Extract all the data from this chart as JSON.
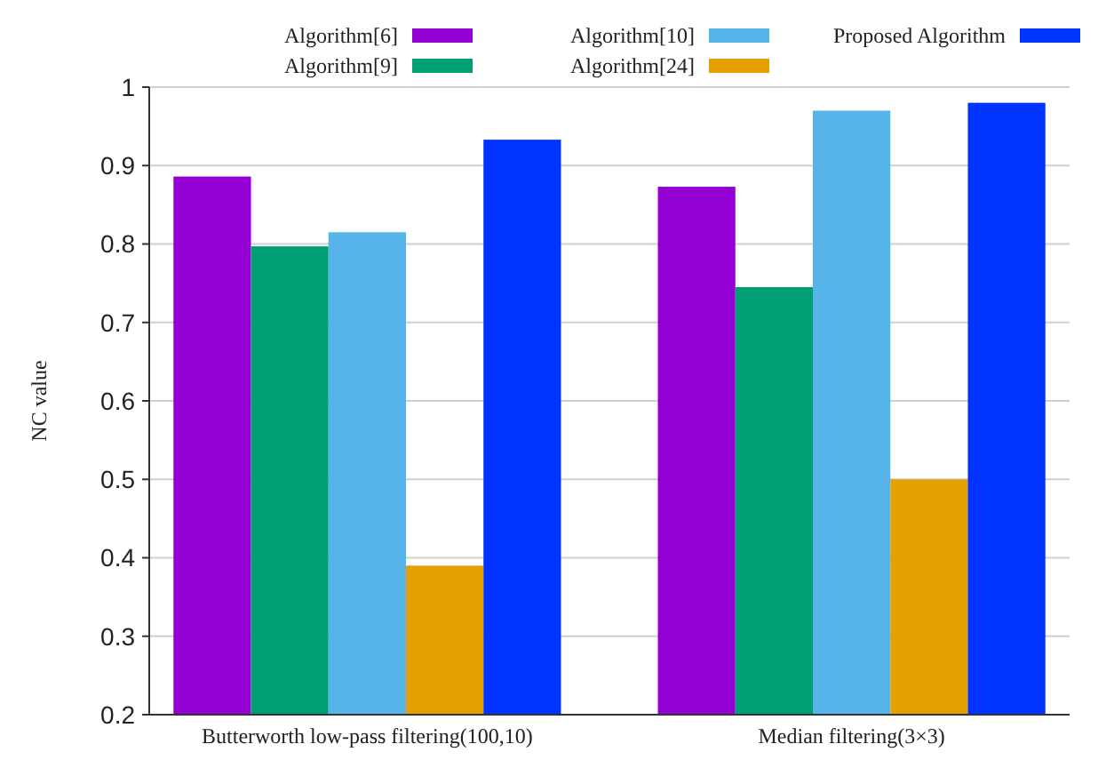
{
  "chart_data": {
    "type": "bar",
    "ylabel": "NC value",
    "categories": [
      "Butterworth low-pass filtering(100,10)",
      "Median filtering(3×3)"
    ],
    "series": [
      {
        "name": "Algorithm[6]",
        "color": "#9400d3",
        "values": [
          0.886,
          0.873
        ]
      },
      {
        "name": "Algorithm[9]",
        "color": "#009e73",
        "values": [
          0.797,
          0.745
        ]
      },
      {
        "name": "Algorithm[10]",
        "color": "#56b4e9",
        "values": [
          0.815,
          0.97
        ]
      },
      {
        "name": "Algorithm[24]",
        "color": "#e69f00",
        "values": [
          0.39,
          0.5
        ]
      },
      {
        "name": "Proposed Algorithm",
        "color": "#0033ff",
        "values": [
          0.933,
          0.98
        ]
      }
    ],
    "ylim": [
      0.2,
      1
    ],
    "yticks": [
      0.2,
      0.3,
      0.4,
      0.5,
      0.6,
      0.7,
      0.8,
      0.9,
      1
    ],
    "grid": "y",
    "legend": "top"
  }
}
